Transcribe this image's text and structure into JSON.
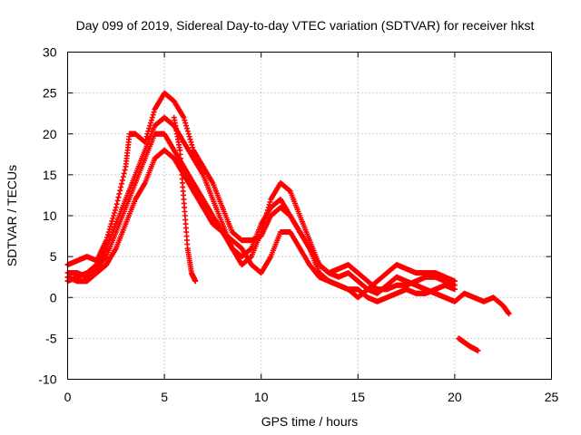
{
  "chart_data": {
    "type": "scatter",
    "title": "Day 099 of 2019, Sidereal Day-to-day VTEC variation (SDTVAR) for receiver hkst",
    "xlabel": "GPS time / hours",
    "ylabel": "SDTVAR / TECUs",
    "xlim": [
      0,
      25
    ],
    "ylim": [
      -10,
      30
    ],
    "xticks": [
      0,
      5,
      10,
      15,
      20,
      25
    ],
    "yticks": [
      -10,
      -5,
      0,
      5,
      10,
      15,
      20,
      25,
      30
    ],
    "grid": true,
    "marker": "+",
    "color": "#ff0000",
    "series": [
      {
        "name": "track-1",
        "points": [
          [
            0,
            2
          ],
          [
            0.5,
            2.5
          ],
          [
            1,
            3
          ],
          [
            1.5,
            4
          ],
          [
            2,
            6
          ],
          [
            2.5,
            9
          ],
          [
            3,
            12
          ],
          [
            3.5,
            15
          ],
          [
            4,
            18
          ],
          [
            4.5,
            21
          ],
          [
            5,
            22
          ],
          [
            5.5,
            21
          ],
          [
            6,
            19
          ],
          [
            6.5,
            17
          ],
          [
            7,
            15
          ],
          [
            7.5,
            12
          ],
          [
            8,
            9
          ],
          [
            8.5,
            6
          ],
          [
            9,
            4
          ],
          [
            9.5,
            5
          ],
          [
            10,
            8
          ],
          [
            10.5,
            12
          ],
          [
            11,
            14
          ],
          [
            11.5,
            13
          ],
          [
            12,
            10
          ],
          [
            12.5,
            7
          ],
          [
            13,
            4
          ],
          [
            13.5,
            3
          ],
          [
            14,
            2.5
          ],
          [
            14.5,
            3
          ],
          [
            15,
            2
          ],
          [
            15.5,
            1
          ],
          [
            16,
            0.5
          ],
          [
            16.5,
            1.5
          ],
          [
            17,
            2.5
          ],
          [
            17.5,
            2
          ],
          [
            18,
            1.5
          ],
          [
            18.5,
            1
          ],
          [
            19,
            0.5
          ],
          [
            19.5,
            0
          ],
          [
            20,
            -0.5
          ],
          [
            20.5,
            0.5
          ],
          [
            21,
            0
          ],
          [
            21.5,
            -0.5
          ],
          [
            22,
            0
          ],
          [
            22.5,
            -1
          ],
          [
            22.8,
            -2
          ]
        ]
      },
      {
        "name": "track-2",
        "points": [
          [
            0,
            3
          ],
          [
            0.5,
            3
          ],
          [
            1,
            2.5
          ],
          [
            1.5,
            3.5
          ],
          [
            2,
            5
          ],
          [
            2.5,
            8
          ],
          [
            3,
            11
          ],
          [
            3.5,
            14
          ],
          [
            4,
            17
          ],
          [
            4.5,
            20
          ],
          [
            5,
            20
          ],
          [
            5.5,
            18
          ],
          [
            6,
            16
          ],
          [
            6.5,
            14
          ],
          [
            7,
            12
          ],
          [
            7.5,
            10
          ],
          [
            8,
            8
          ],
          [
            8.5,
            6
          ],
          [
            9,
            5
          ],
          [
            9.5,
            6
          ],
          [
            10,
            9
          ],
          [
            10.5,
            11
          ],
          [
            11,
            12
          ],
          [
            11.5,
            10
          ],
          [
            12,
            8
          ],
          [
            12.5,
            6
          ],
          [
            13,
            4
          ],
          [
            13.5,
            3
          ],
          [
            14,
            3.5
          ],
          [
            14.5,
            4
          ],
          [
            15,
            3
          ],
          [
            15.5,
            2
          ],
          [
            16,
            1
          ],
          [
            16.5,
            1
          ],
          [
            17,
            1.5
          ],
          [
            17.5,
            1.5
          ],
          [
            18,
            2
          ],
          [
            18.5,
            2.5
          ],
          [
            19,
            2.5
          ],
          [
            19.5,
            2
          ],
          [
            20,
            1.5
          ]
        ]
      },
      {
        "name": "track-3",
        "points": [
          [
            0,
            4
          ],
          [
            0.5,
            4.5
          ],
          [
            1,
            5
          ],
          [
            1.5,
            4.5
          ],
          [
            2,
            7
          ],
          [
            2.5,
            11
          ],
          [
            3,
            16
          ],
          [
            3.2,
            20
          ],
          [
            3.5,
            20
          ],
          [
            4,
            19
          ],
          [
            4.5,
            23
          ],
          [
            5,
            25
          ],
          [
            5.5,
            24
          ],
          [
            6,
            22
          ],
          [
            6.5,
            18
          ],
          [
            7,
            16
          ],
          [
            7.5,
            14
          ],
          [
            8,
            11
          ],
          [
            8.5,
            8
          ],
          [
            9,
            7
          ],
          [
            9.5,
            7
          ],
          [
            10,
            7.5
          ],
          [
            10.5,
            10
          ],
          [
            11,
            11
          ],
          [
            11.5,
            10
          ],
          [
            12,
            8
          ],
          [
            12.5,
            6
          ],
          [
            13,
            3
          ],
          [
            13.5,
            2
          ],
          [
            14,
            1.5
          ],
          [
            14.5,
            1
          ],
          [
            15,
            0
          ],
          [
            15.5,
            1
          ],
          [
            16,
            2
          ],
          [
            16.5,
            3
          ],
          [
            17,
            4
          ],
          [
            17.5,
            3.5
          ],
          [
            18,
            3
          ],
          [
            18.5,
            3
          ],
          [
            19,
            3
          ],
          [
            19.5,
            2.5
          ],
          [
            20,
            2
          ]
        ]
      },
      {
        "name": "track-4",
        "points": [
          [
            0,
            2.5
          ],
          [
            0.5,
            2
          ],
          [
            1,
            2
          ],
          [
            1.5,
            3
          ],
          [
            2,
            4
          ],
          [
            2.5,
            6
          ],
          [
            3,
            9
          ],
          [
            3.5,
            12
          ],
          [
            4,
            14
          ],
          [
            4.5,
            17
          ],
          [
            5,
            18
          ],
          [
            5.5,
            17
          ],
          [
            6,
            15
          ],
          [
            6.5,
            13
          ],
          [
            7,
            11
          ],
          [
            7.5,
            9
          ],
          [
            8,
            8
          ],
          [
            8.5,
            7
          ],
          [
            9,
            6
          ],
          [
            9.5,
            4
          ],
          [
            10,
            3
          ],
          [
            10.5,
            5
          ],
          [
            11,
            8
          ],
          [
            11.5,
            8
          ],
          [
            12,
            6
          ],
          [
            12.5,
            4
          ],
          [
            13,
            2.5
          ],
          [
            13.5,
            2
          ],
          [
            14,
            1.5
          ],
          [
            14.5,
            1
          ],
          [
            15,
            1
          ],
          [
            15.5,
            0
          ],
          [
            16,
            -0.5
          ],
          [
            16.5,
            0
          ],
          [
            17,
            0.5
          ],
          [
            17.5,
            1
          ],
          [
            18,
            0.5
          ],
          [
            18.5,
            0.5
          ],
          [
            19,
            1
          ],
          [
            19.5,
            1.5
          ],
          [
            20,
            1
          ]
        ]
      },
      {
        "name": "track-5",
        "points": [
          [
            5.5,
            22
          ],
          [
            5.8,
            18
          ],
          [
            6,
            12
          ],
          [
            6.2,
            6
          ],
          [
            6.4,
            3
          ],
          [
            6.6,
            2
          ]
        ]
      },
      {
        "name": "track-6",
        "points": [
          [
            20.2,
            -5
          ],
          [
            20.5,
            -5.5
          ],
          [
            20.8,
            -6
          ],
          [
            21.2,
            -6.5
          ]
        ]
      }
    ]
  }
}
